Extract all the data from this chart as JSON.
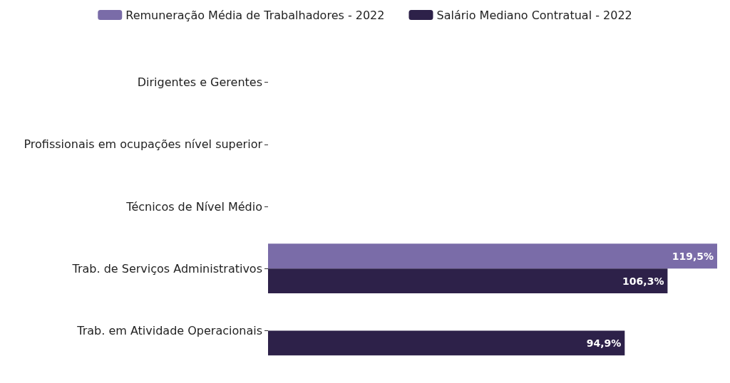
{
  "chart_data": {
    "type": "bar",
    "orientation": "horizontal",
    "legend": "top",
    "categories": [
      "Dirigentes e Gerentes",
      "Profissionais em ocupações nível superior",
      "Técnicos de Nível Médio",
      "Trab. de Serviços Administrativos",
      "Trab. em Atividade Operacionais"
    ],
    "series": [
      {
        "name": "Remuneração Média de Trabalhadores - 2022",
        "color": "#7a6ca8",
        "values": [
          null,
          null,
          null,
          119.5,
          null
        ],
        "value_labels": [
          null,
          null,
          null,
          "119,5%",
          null
        ]
      },
      {
        "name": "Salário Mediano Contratual - 2022",
        "color": "#2d2149",
        "values": [
          null,
          null,
          null,
          106.3,
          94.9
        ],
        "value_labels": [
          null,
          null,
          null,
          "106,3%",
          "94,9%"
        ]
      }
    ]
  }
}
